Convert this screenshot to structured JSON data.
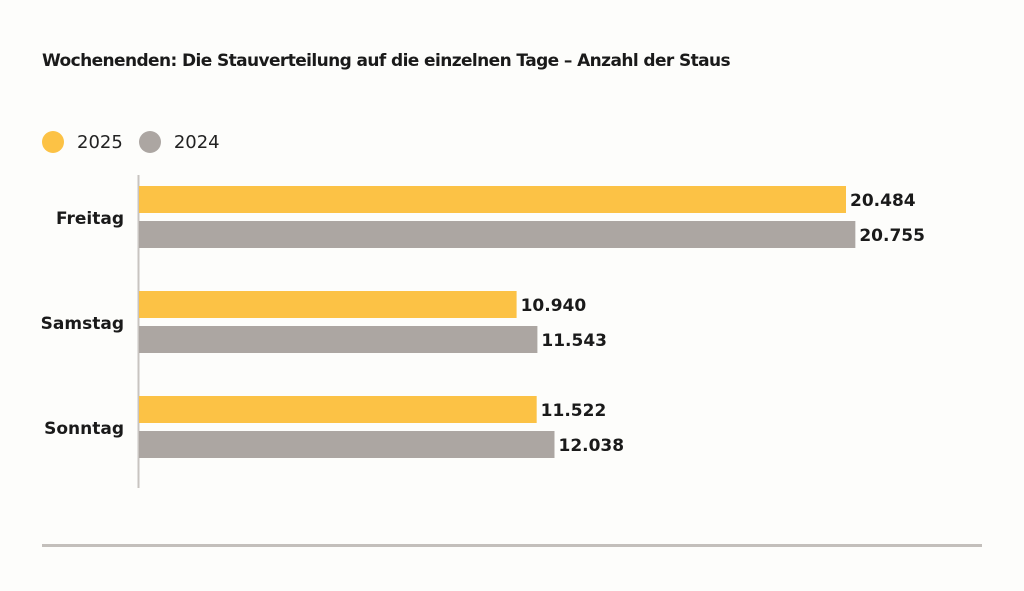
{
  "chart_data": {
    "type": "bar",
    "orientation": "horizontal",
    "title": "Wochenenden: Die Stauverteilung auf die einzelnen Tage – Anzahl der Staus",
    "categories": [
      "Freitag",
      "Samstag",
      "Sonntag"
    ],
    "series": [
      {
        "name": "2025",
        "color": "#fcc245",
        "values": [
          20484,
          10940,
          11522
        ],
        "labels": [
          "20.484",
          "10.940",
          "11.522"
        ]
      },
      {
        "name": "2024",
        "color": "#aca6a2",
        "values": [
          20755,
          11543,
          12038
        ],
        "labels": [
          "20.755",
          "11.543",
          "12.038"
        ]
      }
    ],
    "xlabel": "",
    "ylabel": "",
    "xlim": [
      0,
      20500
    ],
    "grid": false,
    "legend": "top-left"
  },
  "colors": {
    "axis": "#c8c4c0",
    "rule": "#c3bfbb"
  }
}
